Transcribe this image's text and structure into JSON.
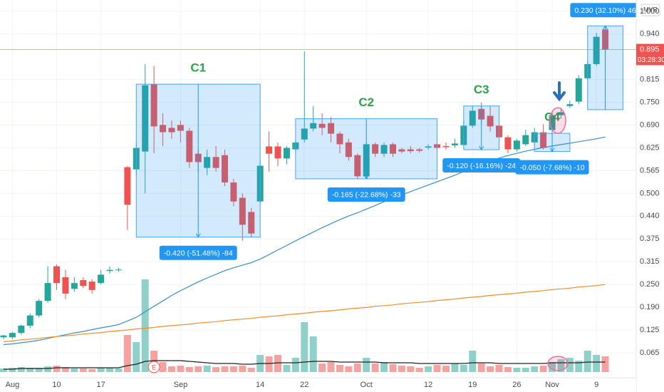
{
  "chart_data": {
    "type": "candlestick",
    "currency": "MYR",
    "x": [
      null,
      "Aug",
      null,
      null,
      null,
      null,
      "10",
      null,
      null,
      null,
      null,
      "17",
      null,
      null,
      null,
      null,
      null,
      null,
      null,
      null,
      "Sep",
      null,
      null,
      null,
      null,
      null,
      null,
      null,
      null,
      "14",
      null,
      null,
      null,
      null,
      "22",
      null,
      null,
      null,
      null,
      null,
      null,
      "Oct",
      null,
      null,
      null,
      null,
      null,
      null,
      "12",
      null,
      null,
      null,
      null,
      "19",
      null,
      null,
      null,
      null,
      "26",
      null,
      null,
      null,
      "Nov",
      null,
      null,
      null,
      null,
      "9",
      null
    ],
    "open": [
      0.105,
      0.105,
      0.117,
      0.137,
      0.165,
      0.205,
      0.3,
      0.27,
      0.238,
      0.262,
      0.258,
      0.254,
      0.287,
      0.29,
      0.572,
      0.566,
      0.615,
      0.8,
      0.688,
      0.68,
      0.688,
      0.672,
      0.609,
      0.57,
      0.6,
      0.605,
      0.53,
      0.488,
      0.449,
      0.478,
      0.629,
      0.629,
      0.596,
      0.621,
      0.648,
      0.678,
      0.691,
      0.693,
      0.664,
      0.64,
      0.605,
      0.547,
      0.635,
      0.609,
      0.635,
      0.621,
      0.621,
      0.621,
      0.626,
      0.635,
      0.63,
      0.632,
      0.633,
      0.686,
      0.732,
      0.713,
      0.686,
      0.654,
      0.621,
      0.635,
      0.64,
      0.668,
      0.674,
      0.715,
      0.74,
      0.752,
      0.816,
      0.855,
      0.95
    ],
    "high": [
      0.112,
      0.12,
      0.14,
      0.17,
      0.21,
      0.3,
      0.305,
      0.29,
      0.27,
      0.27,
      0.265,
      0.29,
      0.3,
      0.296,
      0.575,
      0.64,
      0.855,
      0.85,
      0.72,
      0.7,
      0.7,
      0.68,
      0.62,
      0.62,
      0.63,
      0.62,
      0.54,
      0.5,
      0.46,
      0.59,
      0.67,
      0.64,
      0.63,
      0.645,
      0.89,
      0.74,
      0.72,
      0.71,
      0.67,
      0.65,
      0.61,
      0.64,
      0.64,
      0.64,
      0.64,
      0.625,
      0.63,
      0.625,
      0.635,
      0.64,
      0.64,
      0.65,
      0.7,
      0.74,
      0.75,
      0.74,
      0.7,
      0.66,
      0.65,
      0.675,
      0.68,
      0.69,
      0.725,
      0.735,
      0.755,
      0.825,
      0.865,
      0.94,
      0.955
    ],
    "low": [
      0.1,
      0.1,
      0.112,
      0.13,
      0.16,
      0.2,
      0.235,
      0.21,
      0.23,
      0.24,
      0.225,
      0.25,
      0.28,
      0.285,
      0.4,
      0.55,
      0.5,
      0.61,
      0.63,
      0.65,
      0.64,
      0.57,
      0.56,
      0.55,
      0.56,
      0.52,
      0.465,
      0.37,
      0.38,
      0.47,
      0.56,
      0.575,
      0.58,
      0.61,
      0.64,
      0.67,
      0.66,
      0.64,
      0.61,
      0.59,
      0.54,
      0.54,
      0.6,
      0.6,
      0.6,
      0.61,
      0.61,
      0.612,
      0.62,
      0.62,
      0.62,
      0.625,
      0.63,
      0.68,
      0.69,
      0.67,
      0.64,
      0.61,
      0.615,
      0.63,
      0.63,
      0.62,
      0.665,
      0.705,
      0.735,
      0.745,
      0.81,
      0.85,
      0.88
    ],
    "close": [
      0.11,
      0.117,
      0.137,
      0.165,
      0.205,
      0.254,
      0.254,
      0.225,
      0.254,
      0.246,
      0.235,
      0.277,
      0.29,
      0.291,
      0.469,
      0.625,
      0.797,
      0.684,
      0.668,
      0.668,
      0.672,
      0.586,
      0.586,
      0.6,
      0.57,
      0.53,
      0.478,
      0.414,
      0.39,
      0.576,
      0.609,
      0.596,
      0.625,
      0.64,
      0.678,
      0.693,
      0.68,
      0.664,
      0.635,
      0.6,
      0.547,
      0.635,
      0.609,
      0.633,
      0.609,
      0.615,
      0.616,
      0.617,
      0.629,
      0.625,
      0.627,
      0.637,
      0.686,
      0.727,
      0.703,
      0.684,
      0.654,
      0.621,
      0.645,
      0.66,
      0.668,
      0.625,
      0.715,
      0.723,
      0.745,
      0.816,
      0.855,
      0.93,
      0.895
    ],
    "up_color": "#26a69a",
    "down_color": "#ef5350",
    "up_volume_color": "#8fd1c8",
    "down_volume_color": "#f5a3a1",
    "volume": [
      5,
      6,
      7,
      6,
      6,
      8,
      9,
      7,
      5,
      5,
      4,
      6,
      6,
      5,
      52,
      42,
      130,
      30,
      14,
      8,
      9,
      7,
      8,
      9,
      7,
      8,
      8,
      9,
      6,
      24,
      22,
      24,
      10,
      20,
      70,
      50,
      12,
      14,
      10,
      8,
      12,
      20,
      12,
      14,
      11,
      9,
      8,
      6,
      8,
      10,
      9,
      12,
      10,
      30,
      12,
      8,
      10,
      7,
      6,
      6,
      8,
      9,
      14,
      18,
      20,
      16,
      30,
      24,
      22
    ],
    "volume_lim": [
      0,
      140
    ],
    "volume_ma": {
      "color": "#222222",
      "values": [
        4,
        4,
        5,
        5,
        5,
        5,
        6,
        6,
        6,
        6,
        6,
        6,
        6,
        6,
        9,
        11,
        15,
        16,
        16,
        16,
        16,
        15,
        14,
        13,
        12,
        12,
        12,
        11,
        11,
        12,
        12,
        13,
        13,
        13,
        14,
        15,
        15,
        15,
        14,
        14,
        14,
        14,
        14,
        13,
        13,
        13,
        13,
        12,
        12,
        12,
        12,
        12,
        12,
        13,
        13,
        13,
        12,
        12,
        12,
        12,
        12,
        12,
        13,
        13,
        13,
        13,
        14,
        14,
        14
      ]
    },
    "moving_averages": [
      {
        "color": "#3a8fc7",
        "values": [
          0.085,
          0.087,
          0.09,
          0.093,
          0.097,
          0.102,
          0.107,
          0.112,
          0.117,
          0.121,
          0.126,
          0.131,
          0.135,
          0.14,
          0.15,
          0.16,
          0.175,
          0.19,
          0.205,
          0.22,
          0.233,
          0.245,
          0.257,
          0.268,
          0.278,
          0.288,
          0.296,
          0.303,
          0.31,
          0.32,
          0.332,
          0.345,
          0.357,
          0.37,
          0.382,
          0.394,
          0.406,
          0.417,
          0.428,
          0.438,
          0.447,
          0.457,
          0.467,
          0.477,
          0.487,
          0.496,
          0.505,
          0.514,
          0.523,
          0.532,
          0.541,
          0.55,
          0.56,
          0.57,
          0.58,
          0.589,
          0.597,
          0.604,
          0.61,
          0.616,
          0.621,
          0.626,
          0.63,
          0.634,
          0.638,
          0.642,
          0.646,
          0.65,
          0.655
        ]
      },
      {
        "color": "#f28c28",
        "values": [
          0.093,
          0.095,
          0.098,
          0.1,
          0.102,
          0.105,
          0.107,
          0.109,
          0.111,
          0.114,
          0.116,
          0.118,
          0.121,
          0.123,
          0.125,
          0.128,
          0.13,
          0.132,
          0.135,
          0.137,
          0.139,
          0.141,
          0.144,
          0.146,
          0.148,
          0.151,
          0.153,
          0.155,
          0.157,
          0.16,
          0.162,
          0.164,
          0.167,
          0.169,
          0.171,
          0.174,
          0.176,
          0.178,
          0.18,
          0.183,
          0.185,
          0.187,
          0.19,
          0.192,
          0.194,
          0.197,
          0.199,
          0.201,
          0.203,
          0.206,
          0.208,
          0.21,
          0.213,
          0.215,
          0.217,
          0.22,
          0.222,
          0.224,
          0.226,
          0.229,
          0.231,
          0.233,
          0.236,
          0.238,
          0.24,
          0.243,
          0.245,
          0.247,
          0.25
        ]
      }
    ],
    "ylim": [
      -0.006,
      1.031
    ],
    "yticks": [
      {
        "value": 1.0,
        "label": "1.000"
      },
      {
        "value": 0.9375,
        "label": "0.940"
      },
      {
        "value": 0.8125,
        "label": "0.815"
      },
      {
        "value": 0.75,
        "label": "0.750"
      },
      {
        "value": 0.6875,
        "label": "0.690"
      },
      0.625,
      {
        "value": 0.5625,
        "label": "0.565"
      },
      {
        "value": 0.5,
        "label": "0.500"
      },
      {
        "value": 0.4375,
        "label": "0.440"
      },
      0.375,
      {
        "value": 0.3125,
        "label": "0.315"
      },
      {
        "value": 0.25,
        "label": "0.250"
      },
      {
        "value": 0.1875,
        "label": "0.190"
      },
      0.125,
      {
        "value": 0.0625,
        "label": "0.065"
      }
    ],
    "grid": true,
    "price_label": "0.895",
    "countdown": "03:28:30",
    "earnings_marker": "E",
    "annotations": [
      {
        "label": "C1",
        "measure": "-0.420 (-51.48%) -84",
        "start": 15,
        "end": 29,
        "from": 0.8,
        "to": 0.38
      },
      {
        "label": "C2",
        "measure": "-0.165 (-22.68%) -33",
        "start": 33,
        "end": 49,
        "from": 0.705,
        "to": 0.54
      },
      {
        "label": "C3",
        "measure": "-0.120 (-16.16%) -24",
        "start": 52,
        "end": 56,
        "from": 0.74,
        "to": 0.62
      },
      {
        "label": "C4",
        "measure": "-0.050 (-7.68%) -10",
        "start": 60,
        "end": 64,
        "from": 0.665,
        "to": 0.615
      },
      {
        "measure": "0.230 (32.10%) 46",
        "start": 66,
        "end": 70,
        "from": 0.73,
        "to": 0.96
      }
    ]
  }
}
